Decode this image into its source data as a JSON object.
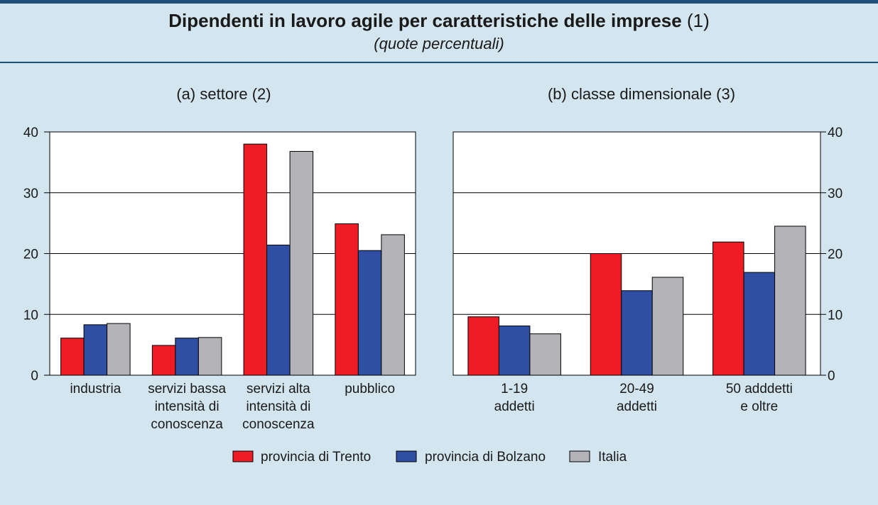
{
  "title_main": "Dipendenti in lavoro agile per caratteristiche delle imprese",
  "title_note": "(1)",
  "subtitle": "(quote percentuali)",
  "colors": {
    "trento": "#ee1c25",
    "bolzano": "#2e4fa3",
    "italia": "#b4b4b8"
  },
  "chart_data": [
    {
      "type": "bar",
      "title": "(a) settore (2)",
      "categories": [
        [
          "industria"
        ],
        [
          "servizi bassa",
          "intensità di",
          "conoscenza"
        ],
        [
          "servizi alta",
          "intensità di",
          "conoscenza"
        ],
        [
          "pubblico"
        ]
      ],
      "series": [
        {
          "name": "provincia di Trento",
          "values": [
            6.1,
            4.9,
            38.0,
            24.9
          ]
        },
        {
          "name": "provincia di Bolzano",
          "values": [
            8.3,
            6.1,
            21.4,
            20.5
          ]
        },
        {
          "name": "Italia",
          "values": [
            8.5,
            6.2,
            36.8,
            23.1
          ]
        }
      ],
      "ylim": [
        0,
        40
      ],
      "yticks": [
        "0",
        "10",
        "20",
        "30",
        "40"
      ],
      "y_axis_side": "left"
    },
    {
      "type": "bar",
      "title": "(b) classe dimensionale (3)",
      "categories": [
        [
          "1-19",
          "addetti"
        ],
        [
          "20-49",
          "addetti"
        ],
        [
          "50 adddetti",
          "e oltre"
        ]
      ],
      "series": [
        {
          "name": "provincia di Trento",
          "values": [
            9.6,
            20.0,
            21.9
          ]
        },
        {
          "name": "provincia di Bolzano",
          "values": [
            8.1,
            13.9,
            16.9
          ]
        },
        {
          "name": "Italia",
          "values": [
            6.8,
            16.1,
            24.5
          ]
        }
      ],
      "ylim": [
        0,
        40
      ],
      "yticks": [
        "0",
        "10",
        "20",
        "30",
        "40"
      ],
      "y_axis_side": "right"
    }
  ],
  "legend": [
    "provincia di Trento",
    "provincia di Bolzano",
    "Italia"
  ]
}
